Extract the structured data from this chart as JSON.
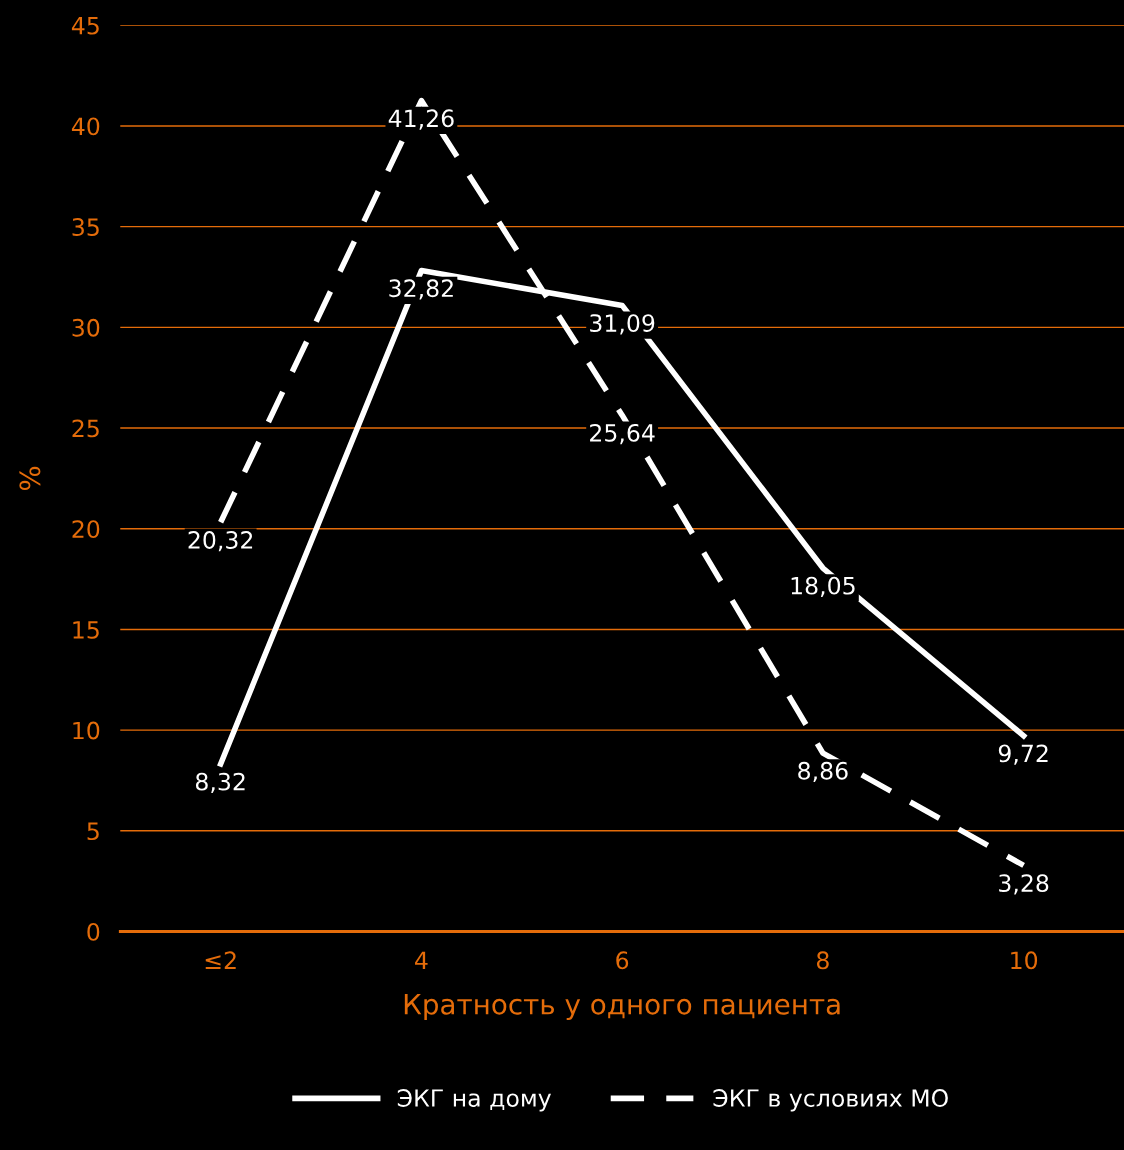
{
  "chart_data": {
    "type": "line",
    "xlabel": "Кратность у одного пациента",
    "ylabel": "%",
    "categories": [
      "≤2",
      "4",
      "6",
      "8",
      "10"
    ],
    "series": [
      {
        "name": "ЭКГ на дому",
        "color": "#ffffff",
        "line_style": "solid",
        "values": [
          8.32,
          32.82,
          31.09,
          18.05,
          9.72
        ],
        "value_labels": [
          "8,32",
          "32,82",
          "31,09",
          "18,05",
          "9,72"
        ]
      },
      {
        "name": "ЭКГ в условиях МО",
        "color": "#ffffff",
        "line_style": "dashed",
        "values": [
          20.32,
          41.26,
          25.64,
          8.86,
          3.28
        ],
        "value_labels": [
          "20,32",
          "41,26",
          "25,64",
          "8,86",
          "3,28"
        ]
      }
    ],
    "ylim": [
      0,
      45
    ],
    "yticks": [
      0,
      5,
      10,
      15,
      20,
      25,
      30,
      35,
      40,
      45
    ],
    "grid": "y",
    "legend": "bottom"
  }
}
